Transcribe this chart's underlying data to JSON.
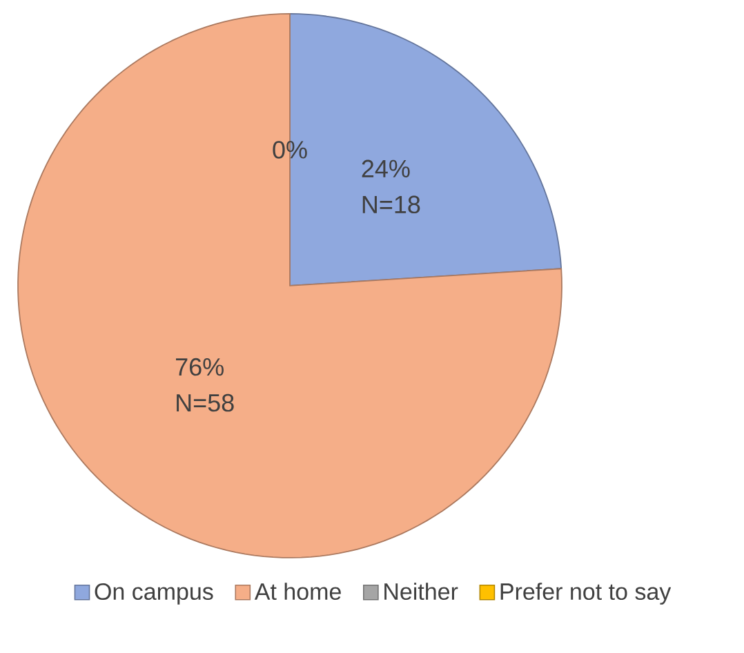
{
  "chart_data": {
    "type": "pie",
    "categories": [
      "On campus",
      "At home",
      "Neither",
      "Prefer not to say"
    ],
    "values": [
      24,
      76,
      0,
      0
    ],
    "colors": [
      "#8fa8de",
      "#f5ae88",
      "#a5a5a5",
      "#ffc000"
    ],
    "value_labels": [
      "24% N=18",
      "76% N=58",
      null,
      "0%"
    ],
    "legend": "bottom"
  }
}
